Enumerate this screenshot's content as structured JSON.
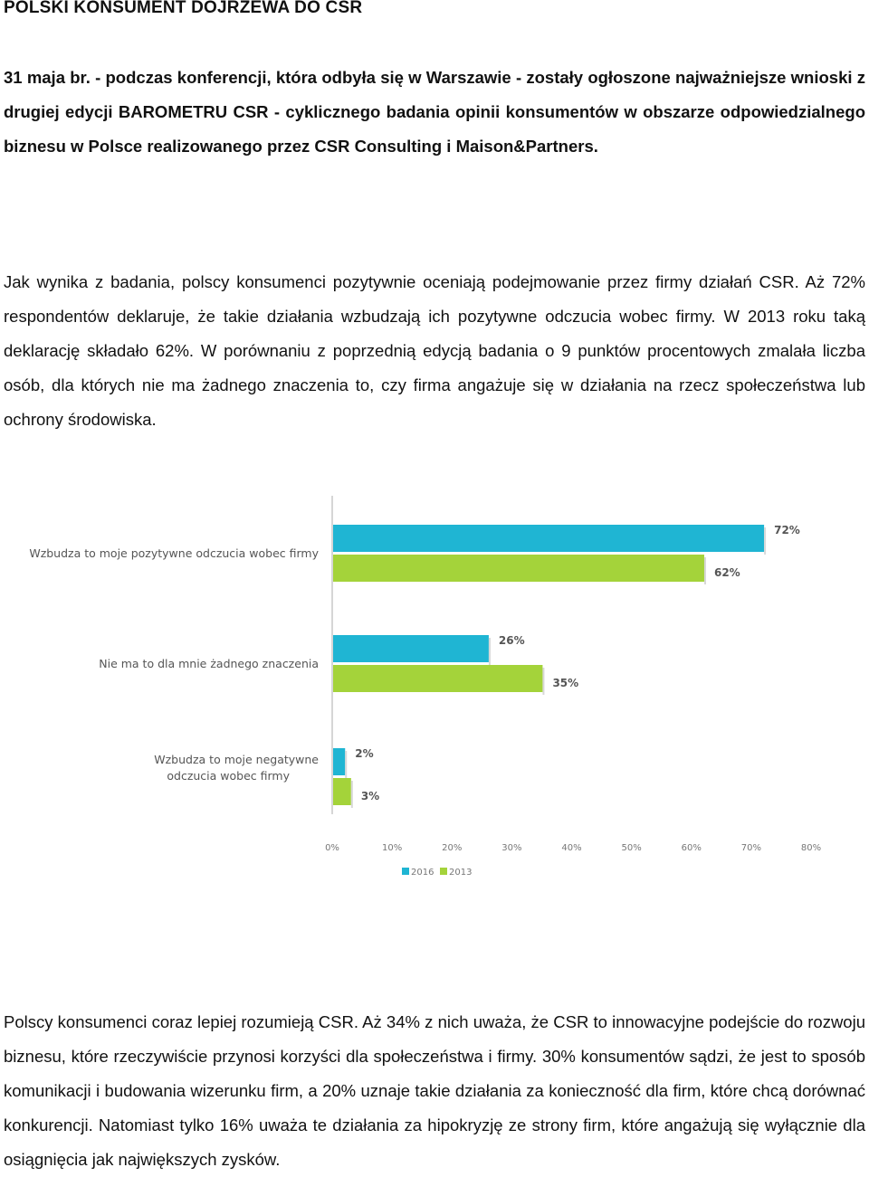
{
  "document": {
    "title": "POLSKI KONSUMENT DOJRZEWA DO CSR",
    "lead": "31 maja br. - podczas konferencji, która odbyła się w Warszawie - zostały ogłoszone najważniejsze wnioski z drugiej edycji BAROMETRU CSR - cyklicznego badania opinii konsumentów w obszarze odpowiedzialnego biznesu w Polsce realizowanego przez CSR Consulting i Maison&Partners.",
    "paragraph_1": "Jak wynika z badania, polscy konsumenci pozytywnie oceniają podejmowanie przez firmy działań CSR. Aż 72% respondentów deklaruje, że takie działania wzbudzają ich pozytywne odczucia wobec firmy. W 2013 roku taką deklarację składało 62%. W porównaniu z poprzednią edycją badania o 9 punktów procentowych zmalała liczba osób, dla których nie ma  żadnego znaczenia to, czy firma angażuje się w działania na rzecz społeczeństwa lub ochrony środowiska.",
    "paragraph_2": "Polscy konsumenci coraz lepiej rozumieją CSR. Aż 34% z nich uważa, że CSR to innowacyjne podejście do rozwoju biznesu, które rzeczywiście przynosi korzyści dla społeczeństwa i firmy. 30% konsumentów sądzi, że jest to sposób komunikacji i budowania wizerunku firm, a 20% uznaje takie działania za konieczność dla firm, które chcą dorównać konkurencji. Natomiast tylko 16% uważa te działania za hipokryzję ze strony firm, które angażują się wyłącznie dla osiągnięcia jak największych zysków."
  },
  "chart_data": {
    "type": "bar",
    "orientation": "horizontal",
    "categories": [
      [
        "Wzbudza to moje pozytywne odczucia wobec firmy"
      ],
      [
        "Nie ma to dla mnie żadnego znaczenia"
      ],
      [
        "Wzbudza to moje negatywne",
        "odczucia wobec firmy"
      ]
    ],
    "series": [
      {
        "name": "2016",
        "values": [
          72,
          26,
          2
        ],
        "labels": [
          "72%",
          "26%",
          "2%"
        ],
        "color": "#1fb5d3"
      },
      {
        "name": "2013",
        "values": [
          62,
          35,
          3
        ],
        "labels": [
          "62%",
          "35%",
          "3%"
        ],
        "color": "#a4d33a"
      }
    ],
    "xlim": [
      0,
      80
    ],
    "ticks": [
      "0%",
      "10%",
      "20%",
      "30%",
      "40%",
      "50%",
      "60%",
      "70%",
      "80%"
    ],
    "legend": "bottom"
  }
}
